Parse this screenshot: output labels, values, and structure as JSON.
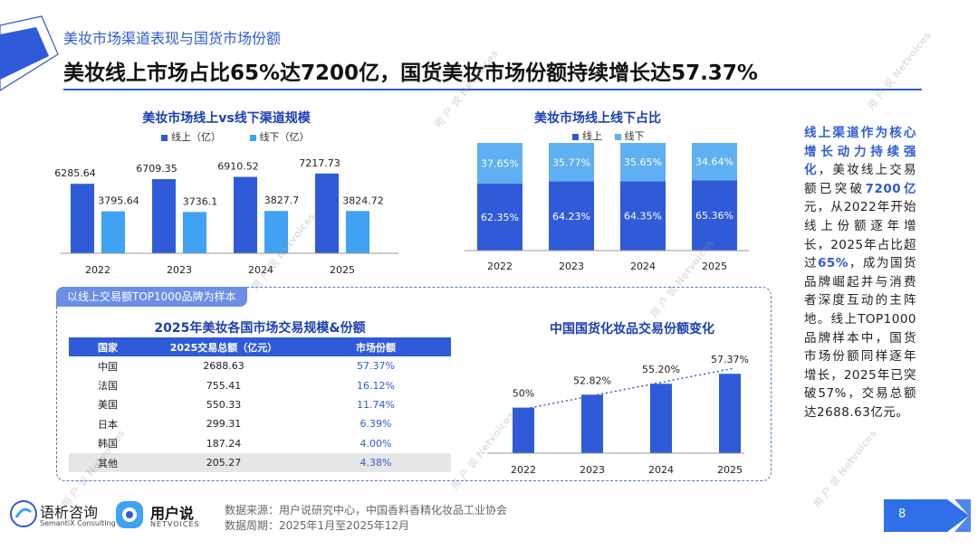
{
  "header": {
    "subtitle": "美妆市场渠道表现与国货市场份额",
    "headline": "美妆线上市场占比65%达7200亿，国货美妆市场份额持续增长达57.37%"
  },
  "side_text": {
    "p1": "线上渠道作为核心增长动力持续强化",
    "p2": "，美妆线上交易额已突破",
    "p3": "7200亿",
    "p4": "元，从2022年开始线上份额逐年增长，2025年占比超过",
    "p5": "65%",
    "p6": "，成为国货品牌崛起并与消费者深度互动的主阵地。线上TOP1000品牌样本中，国货市场份额同样逐年增长，2025年已突破57%，交易总额达2688.63亿元。"
  },
  "sample_tab": "以线上交易额TOP1000品牌为样本",
  "source": {
    "line1": "数据来源：用户说研究中心，中国香料香精化妆品工业协会",
    "line2": "数据周期：2025年1月至2025年12月"
  },
  "page_number": "8",
  "logos": {
    "semantix_cn": "语析咨询",
    "semantix_en": "SemantiX Consulting",
    "netvoices_cn": "用户说",
    "netvoices_en": "NETVOICES"
  },
  "watermark": {
    "cn": "用 户 说",
    "en": "Netvoices"
  },
  "colors": {
    "primary": "#2f5bd8",
    "online": "#2f5bd8",
    "offline": "#3fa2f2",
    "online_share": "#2f5bd8",
    "offline_share": "#5eb0f3"
  },
  "chart_data": [
    {
      "type": "bar",
      "title": "美妆市场线上vs线下渠道规模",
      "categories": [
        "2022",
        "2023",
        "2024",
        "2025"
      ],
      "series": [
        {
          "name": "线上（亿）",
          "values": [
            6285.64,
            6709.35,
            6910.52,
            7217.73
          ],
          "labels": [
            "6285.64",
            "6709.35",
            "6910.52",
            "7217.73"
          ]
        },
        {
          "name": "线下（亿）",
          "values": [
            3795.64,
            3736.1,
            3827.7,
            3824.72
          ],
          "labels": [
            "3795.64",
            "3736.1",
            "3827.7",
            "3824.72"
          ]
        }
      ],
      "ylim": [
        0,
        9000
      ],
      "legend": "top-center",
      "grid": false
    },
    {
      "type": "bar",
      "stacked": true,
      "title": "美妆市场线上线下占比",
      "categories": [
        "2022",
        "2023",
        "2024",
        "2025"
      ],
      "series": [
        {
          "name": "线上",
          "values": [
            62.35,
            64.23,
            64.35,
            65.36
          ],
          "labels": [
            "62.35%",
            "64.23%",
            "64.35%",
            "65.36%"
          ]
        },
        {
          "name": "线下",
          "values": [
            37.65,
            35.77,
            35.65,
            34.64
          ],
          "labels": [
            "37.65%",
            "35.77%",
            "35.65%",
            "34.64%"
          ]
        }
      ],
      "ylim": [
        0,
        100
      ],
      "legend": "top-center",
      "grid": false
    },
    {
      "type": "table",
      "title": "2025年美妆各国市场交易规模&份额",
      "columns": [
        "国家",
        "2025交易总额（亿元）",
        "市场份额"
      ],
      "rows": [
        [
          "中国",
          "2688.63",
          "57.37%"
        ],
        [
          "法国",
          "755.41",
          "16.12%"
        ],
        [
          "美国",
          "550.33",
          "11.74%"
        ],
        [
          "日本",
          "299.31",
          "6.39%"
        ],
        [
          "韩国",
          "187.24",
          "4.00%"
        ],
        [
          "其他",
          "205.27",
          "4.38%"
        ]
      ]
    },
    {
      "type": "bar",
      "title": "中国国货化妆品交易份额变化",
      "categories": [
        "2022",
        "2023",
        "2024",
        "2025"
      ],
      "values": [
        50,
        52.82,
        55.2,
        57.37
      ],
      "labels": [
        "50%",
        "52.82%",
        "55.20%",
        "57.37%"
      ],
      "trendline": true,
      "legend": "none",
      "grid": false
    }
  ]
}
